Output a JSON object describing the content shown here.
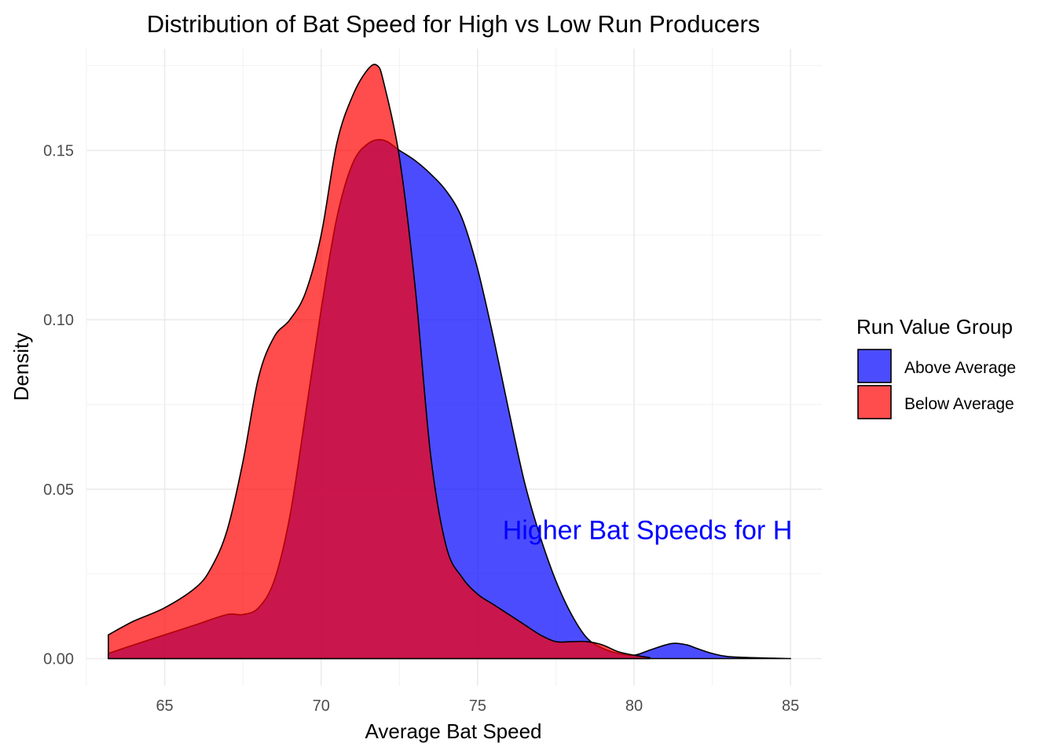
{
  "chart_data": {
    "type": "area",
    "title": "Distribution of Bat Speed for High vs Low Run Producers",
    "xlabel": "Average Bat Speed",
    "ylabel": "Density",
    "xlim": [
      62.5,
      86
    ],
    "ylim": [
      -0.008,
      0.18
    ],
    "x_ticks": [
      65,
      70,
      75,
      80,
      85
    ],
    "x_tick_labels": [
      "65",
      "70",
      "75",
      "80",
      "85"
    ],
    "y_ticks": [
      0,
      0.05,
      0.1,
      0.15
    ],
    "y_tick_labels": [
      "0.00",
      "0.05",
      "0.10",
      "0.15"
    ],
    "grid": true,
    "legend": {
      "title": "Run Value Group",
      "position": "right",
      "entries": [
        "Above Average",
        "Below Average"
      ]
    },
    "annotation": {
      "text": "Higher Bat Speeds for H",
      "x": 75.8,
      "y": 0.038,
      "color": "#0000ff"
    },
    "colors": {
      "above": "#0000ff",
      "below": "#ff0000",
      "fill_opacity": 0.7
    },
    "series": [
      {
        "name": "Above Average",
        "color": "#0000ff",
        "x": [
          63.2,
          64,
          65,
          66,
          67,
          67.5,
          68,
          68.5,
          69,
          69.5,
          70,
          70.5,
          71,
          71.5,
          72,
          72.5,
          73,
          73.5,
          74,
          74.5,
          75,
          75.5,
          76,
          76.5,
          77,
          77.5,
          78,
          78.5,
          79,
          79.5,
          80,
          80.5,
          81,
          81.3,
          81.7,
          82,
          82.5,
          83,
          84,
          85
        ],
        "y": [
          0.0015,
          0.004,
          0.007,
          0.01,
          0.013,
          0.013,
          0.015,
          0.023,
          0.042,
          0.072,
          0.103,
          0.13,
          0.146,
          0.152,
          0.153,
          0.15,
          0.147,
          0.143,
          0.138,
          0.13,
          0.115,
          0.095,
          0.073,
          0.052,
          0.036,
          0.023,
          0.013,
          0.006,
          0.003,
          0.0015,
          0.001,
          0.0025,
          0.004,
          0.0045,
          0.004,
          0.003,
          0.0015,
          0.0006,
          0.0002,
          0.0
        ]
      },
      {
        "name": "Below Average",
        "color": "#ff0000",
        "x": [
          63.2,
          64,
          65,
          66,
          66.5,
          67,
          67.5,
          68,
          68.5,
          69,
          69.5,
          70,
          70.5,
          71,
          71.5,
          71.8,
          72,
          72.5,
          73,
          73.5,
          74,
          74.5,
          75,
          75.5,
          76,
          76.5,
          77,
          77.5,
          78,
          78.5,
          79,
          79.5,
          80,
          80.5
        ],
        "y": [
          0.007,
          0.011,
          0.015,
          0.021,
          0.027,
          0.038,
          0.058,
          0.083,
          0.095,
          0.1,
          0.108,
          0.125,
          0.152,
          0.166,
          0.174,
          0.175,
          0.17,
          0.148,
          0.11,
          0.06,
          0.033,
          0.024,
          0.019,
          0.016,
          0.013,
          0.01,
          0.007,
          0.005,
          0.005,
          0.005,
          0.004,
          0.002,
          0.001,
          0.0003
        ]
      }
    ]
  }
}
